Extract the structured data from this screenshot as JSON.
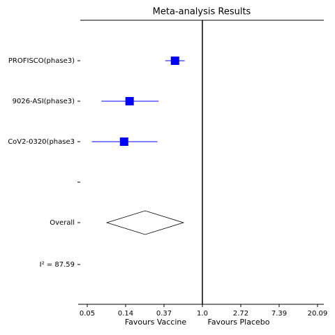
{
  "chart_data": {
    "type": "forest",
    "title": "Meta-analysis Results",
    "categories": [
      "PROFISCO(phase3)",
      "9026-ASI(phase3)",
      "CoV2-0320(phase3"
    ],
    "values": [
      0.49,
      0.15,
      0.13
    ],
    "lower": [
      0.38,
      0.072,
      0.056
    ],
    "upper": [
      0.63,
      0.32,
      0.31
    ],
    "color": "#0000ff",
    "overall": {
      "label": "Overall",
      "value": 0.225,
      "lower": 0.083,
      "upper": 0.61
    },
    "heterogeneity": "I² = 87.59",
    "reference": 1,
    "x_scale": "log",
    "xlim": [
      0.0393,
      23.67
    ],
    "xticks": [
      {
        "value": 0.0498,
        "label": "0.05"
      },
      {
        "value": 0.1353,
        "label": "0.14"
      },
      {
        "value": 0.3679,
        "label": "0.37"
      },
      {
        "value": 1,
        "label": "1.0"
      },
      {
        "value": 2.7183,
        "label": "2.72"
      },
      {
        "value": 7.3891,
        "label": "7.39"
      },
      {
        "value": 20.0855,
        "label": "20.09"
      }
    ],
    "xlabel_left": "Favours Vaccine",
    "xlabel_right": "Favours Placebo"
  }
}
